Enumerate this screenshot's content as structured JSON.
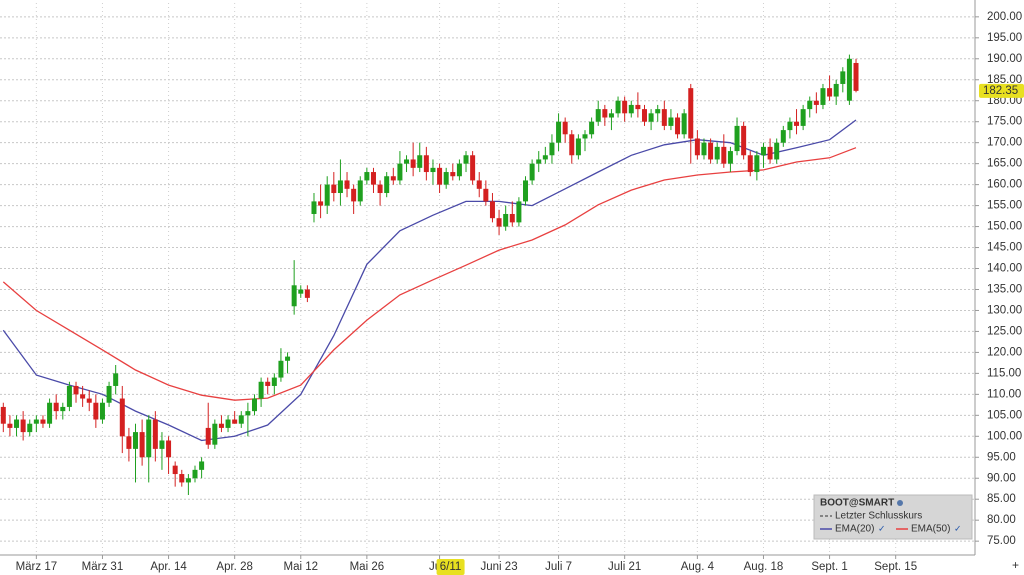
{
  "chart_data": {
    "type": "candlestick",
    "legend_title": "BOOT@SMART",
    "last_close_name": "Letzter Schlusskurs",
    "last_close": {
      "value": 182.35,
      "label": "182.35"
    },
    "crosshair_label": "6/11",
    "up_color": "#1fa01f",
    "down_color": "#d42020",
    "grid": true,
    "xlim": [
      -0.5,
      147
    ],
    "ylim": [
      71.7,
      203.3
    ],
    "xticks": [
      {
        "value": 5,
        "label": "März 17"
      },
      {
        "value": 15,
        "label": "März 31"
      },
      {
        "value": 25,
        "label": "Apr. 14"
      },
      {
        "value": 35,
        "label": "Apr. 28"
      },
      {
        "value": 45,
        "label": "Mai 12"
      },
      {
        "value": 55,
        "label": "Mai 26"
      },
      {
        "value": 66,
        "label": "Juni"
      },
      {
        "value": 75,
        "label": "Juni 23"
      },
      {
        "value": 84,
        "label": "Juli 7"
      },
      {
        "value": 94,
        "label": "Juli 21"
      },
      {
        "value": 105,
        "label": "Aug. 4"
      },
      {
        "value": 115,
        "label": "Aug. 18"
      },
      {
        "value": 125,
        "label": "Sept. 1"
      },
      {
        "value": 135,
        "label": "Sept. 15"
      }
    ],
    "yticks": [
      {
        "value": 75,
        "label": "75.00"
      },
      {
        "value": 80,
        "label": "80.00"
      },
      {
        "value": 85,
        "label": "85.00"
      },
      {
        "value": 90,
        "label": "90.00"
      },
      {
        "value": 95,
        "label": "95.00"
      },
      {
        "value": 100,
        "label": "100.00"
      },
      {
        "value": 105,
        "label": "105.00"
      },
      {
        "value": 110,
        "label": "110.00"
      },
      {
        "value": 115,
        "label": "115.00"
      },
      {
        "value": 120,
        "label": "120.00"
      },
      {
        "value": 125,
        "label": "125.00"
      },
      {
        "value": 130,
        "label": "130.00"
      },
      {
        "value": 135,
        "label": "135.00"
      },
      {
        "value": 140,
        "label": "140.00"
      },
      {
        "value": 145,
        "label": "145.00"
      },
      {
        "value": 150,
        "label": "150.00"
      },
      {
        "value": 155,
        "label": "155.00"
      },
      {
        "value": 160,
        "label": "160.00"
      },
      {
        "value": 165,
        "label": "165.00"
      },
      {
        "value": 170,
        "label": "170.00"
      },
      {
        "value": 175,
        "label": "175.00"
      },
      {
        "value": 180,
        "label": "180.00"
      },
      {
        "value": 185,
        "label": "185.00"
      },
      {
        "value": 190,
        "label": "190.00"
      },
      {
        "value": 195,
        "label": "195.00"
      },
      {
        "value": 200,
        "label": "200.00"
      }
    ],
    "open": [
      107,
      103,
      102,
      104,
      101,
      103,
      104,
      103,
      108,
      106,
      107,
      112,
      110,
      109,
      108,
      104,
      108,
      112,
      109,
      100,
      97,
      101,
      95,
      104,
      97,
      99,
      93,
      91,
      89,
      90,
      92,
      102,
      98,
      103,
      102,
      104,
      103,
      105,
      106,
      109,
      113,
      112,
      114,
      118,
      131,
      134,
      135,
      153,
      156,
      155,
      160,
      158,
      161,
      159,
      156,
      161,
      163,
      160,
      158,
      162,
      161,
      165,
      166,
      164,
      167,
      163,
      164,
      160,
      163,
      162,
      165,
      167,
      161,
      159,
      156,
      152,
      150,
      153,
      151,
      156,
      161,
      165,
      166,
      167,
      170,
      175,
      172,
      167,
      171,
      172,
      175,
      178,
      176,
      177,
      180,
      177,
      179,
      178,
      175,
      177,
      178,
      174,
      176,
      172,
      183,
      171,
      167,
      170,
      166,
      169,
      165,
      168,
      174,
      167,
      163,
      167,
      169,
      166,
      170,
      173,
      175,
      174,
      178,
      180,
      179,
      183,
      181,
      184,
      180,
      189
    ],
    "high": [
      108,
      105,
      105,
      106,
      104,
      105,
      105,
      109,
      110,
      108,
      113,
      113,
      112,
      111,
      110,
      109,
      113,
      117,
      112,
      102,
      103,
      104,
      105,
      106,
      101,
      100,
      94,
      92,
      91,
      93,
      95,
      108,
      104,
      105,
      105,
      106,
      106,
      108,
      110,
      114,
      114,
      115,
      121,
      120,
      142,
      136,
      136,
      158,
      160,
      162,
      163,
      166,
      163,
      160,
      162,
      164,
      164,
      161,
      163,
      164,
      168,
      167,
      170,
      170,
      169,
      166,
      165,
      164,
      165,
      166,
      168,
      168,
      163,
      161,
      158,
      154,
      155,
      156,
      157,
      162,
      166,
      168,
      169,
      172,
      177,
      176,
      173,
      172,
      173,
      176,
      180,
      179,
      178,
      181,
      181,
      180,
      182,
      179,
      178,
      179,
      180,
      178,
      177,
      178,
      184,
      173,
      171,
      171,
      170,
      172,
      169,
      176,
      175,
      168,
      168,
      170,
      171,
      171,
      174,
      176,
      178,
      179,
      181,
      182,
      184,
      186,
      185,
      188,
      191,
      190
    ],
    "low": [
      101,
      100,
      100,
      99,
      100,
      101,
      102,
      102,
      104,
      104,
      106,
      108,
      107,
      106,
      102,
      103,
      107,
      110,
      96,
      94,
      89,
      93,
      89,
      94,
      92,
      91,
      88,
      88,
      86,
      89,
      90,
      97,
      97,
      101,
      101,
      103,
      102,
      100,
      105,
      107,
      110,
      110,
      113,
      115,
      129,
      133,
      132,
      151,
      152,
      153,
      156,
      155,
      157,
      153,
      155,
      160,
      158,
      155,
      157,
      160,
      160,
      163,
      162,
      163,
      161,
      160,
      158,
      159,
      161,
      161,
      163,
      160,
      157,
      155,
      151,
      148,
      149,
      150,
      150,
      155,
      160,
      163,
      165,
      165,
      168,
      170,
      165,
      166,
      168,
      171,
      174,
      174,
      173,
      176,
      175,
      176,
      176,
      174,
      173,
      175,
      173,
      173,
      171,
      171,
      165,
      166,
      166,
      165,
      165,
      164,
      163,
      167,
      166,
      162,
      161,
      164,
      165,
      165,
      169,
      171,
      172,
      173,
      176,
      177,
      178,
      180,
      179,
      182,
      179,
      182
    ],
    "close": [
      103,
      102,
      104,
      101,
      103,
      104,
      103,
      108,
      106,
      107,
      112,
      110,
      109,
      108,
      104,
      108,
      112,
      115,
      100,
      97,
      101,
      95,
      104,
      97,
      99,
      95,
      91,
      89,
      90,
      92,
      94,
      98,
      103,
      102,
      104,
      103,
      105,
      106,
      109,
      113,
      112,
      114,
      118,
      119,
      136,
      135,
      133,
      156,
      155,
      160,
      158,
      161,
      159,
      156,
      161,
      163,
      160,
      158,
      162,
      161,
      165,
      166,
      164,
      167,
      163,
      164,
      160,
      163,
      162,
      165,
      167,
      161,
      159,
      156,
      152,
      150,
      153,
      151,
      156,
      161,
      165,
      166,
      167,
      170,
      175,
      172,
      167,
      171,
      172,
      175,
      178,
      176,
      177,
      180,
      177,
      179,
      178,
      175,
      177,
      178,
      174,
      176,
      172,
      177,
      171,
      167,
      170,
      166,
      169,
      165,
      168,
      174,
      167,
      163,
      167,
      169,
      166,
      170,
      173,
      175,
      174,
      178,
      180,
      179,
      183,
      181,
      184,
      187,
      190,
      182.35
    ],
    "series": [
      {
        "name": "EMA(20)",
        "color": "#4a4aa8",
        "x": [
          0,
          5,
          10,
          15,
          20,
          25,
          30,
          35,
          40,
          45,
          50,
          55,
          60,
          65,
          70,
          75,
          80,
          85,
          90,
          95,
          100,
          105,
          110,
          115,
          120,
          125,
          129
        ],
        "values": [
          125.3,
          114.6,
          112.2,
          110,
          106,
          102.7,
          99,
          100,
          102.7,
          110,
          124,
          141,
          149,
          152.7,
          156,
          156,
          155,
          159,
          163,
          167,
          169.5,
          170.7,
          170,
          167,
          168.8,
          170.7,
          175.4
        ]
      },
      {
        "name": "EMA(50)",
        "color": "#e84040",
        "x": [
          0,
          5,
          10,
          15,
          20,
          25,
          30,
          35,
          40,
          45,
          50,
          55,
          60,
          65,
          70,
          75,
          80,
          85,
          90,
          95,
          100,
          105,
          110,
          115,
          120,
          125,
          129
        ],
        "values": [
          136.8,
          130,
          125.3,
          120.6,
          115.8,
          112.2,
          109.8,
          108.6,
          109.1,
          112.2,
          120.6,
          127.7,
          133.7,
          137.3,
          140.8,
          144.4,
          146.8,
          150.4,
          155.2,
          158.7,
          161.1,
          162.3,
          163,
          163.5,
          165.4,
          166.4,
          168.8
        ]
      }
    ]
  }
}
